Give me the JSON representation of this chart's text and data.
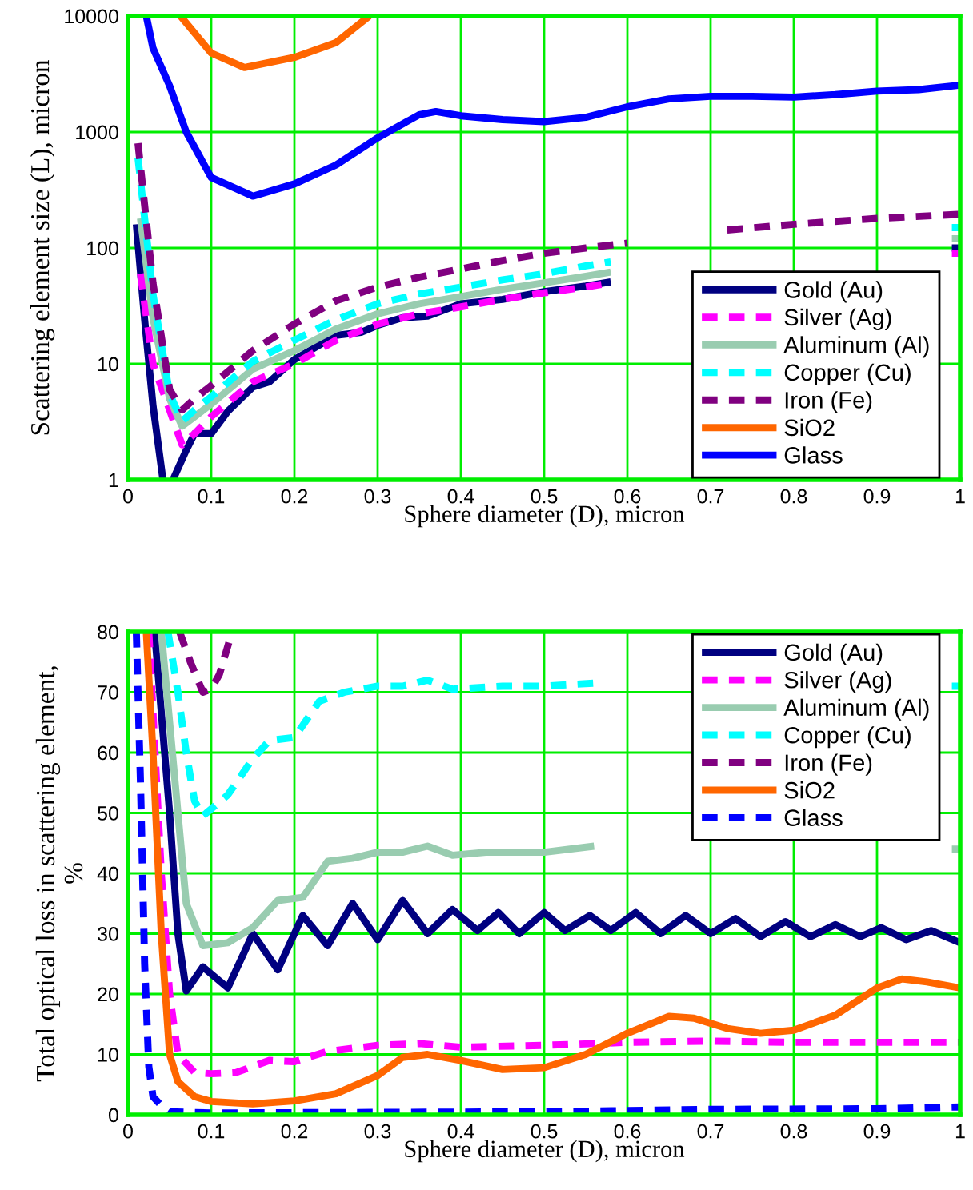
{
  "chart_data": [
    {
      "type": "line",
      "xlabel": "Sphere diameter (D), micron",
      "ylabel": "Scattering element size (L), micron",
      "log": "y",
      "xlim": [
        0,
        1
      ],
      "ylim": [
        1,
        10000
      ],
      "xticks": [
        0,
        0.1,
        0.2,
        0.3,
        0.4,
        0.5,
        0.6,
        0.7,
        0.8,
        0.9,
        1
      ],
      "yticks": [
        1,
        10,
        100,
        1000,
        10000
      ],
      "grid": true,
      "legend": "bottom right",
      "marker": "none",
      "series": [
        {
          "name": "Gold (Au)",
          "color": "#000080",
          "line_style": "solid",
          "x": [
            0.01,
            0.02,
            0.03,
            0.042,
            0.048,
            0.054,
            0.07,
            0.08,
            0.1,
            0.12,
            0.15,
            0.17,
            0.2,
            0.25,
            0.28,
            0.3,
            0.33,
            0.36,
            0.4,
            0.45,
            0.5,
            0.55,
            0.58,
            0.62,
            0.99,
            1.0
          ],
          "values": [
            160,
            24,
            4.4,
            1,
            null,
            1,
            1.8,
            2.5,
            2.5,
            3.9,
            6.3,
            7,
            10.9,
            17.6,
            18.7,
            21.5,
            25,
            25.8,
            33,
            36,
            42,
            47,
            51,
            null,
            100,
            100
          ]
        },
        {
          "name": "Silver (Ag)",
          "color": "#ff00ff",
          "line_style": "dashed",
          "x": [
            0.015,
            0.03,
            0.05,
            0.065,
            0.08,
            0.1,
            0.15,
            0.2,
            0.25,
            0.3,
            0.35,
            0.4,
            0.45,
            0.5,
            0.55,
            0.58,
            0.62,
            0.99,
            1.0
          ],
          "values": [
            60,
            10,
            4,
            2,
            2.5,
            3.5,
            7,
            10,
            16,
            22,
            27,
            31,
            36,
            41,
            46,
            50,
            null,
            90,
            90
          ]
        },
        {
          "name": "Aluminum (Al)",
          "color": "#99ccb0",
          "line_style": "solid",
          "x": [
            0.015,
            0.03,
            0.05,
            0.065,
            0.08,
            0.1,
            0.15,
            0.2,
            0.25,
            0.3,
            0.35,
            0.4,
            0.45,
            0.5,
            0.55,
            0.58,
            0.62,
            0.99,
            1.0
          ],
          "values": [
            180,
            25,
            5,
            2.9,
            3.5,
            4.5,
            9,
            13,
            20,
            27,
            33,
            38,
            44,
            50,
            57,
            62,
            null,
            120,
            120
          ]
        },
        {
          "name": "Copper (Cu)",
          "color": "#00ffff",
          "line_style": "dashed",
          "x": [
            0.012,
            0.03,
            0.05,
            0.065,
            0.08,
            0.1,
            0.15,
            0.2,
            0.25,
            0.3,
            0.35,
            0.4,
            0.45,
            0.5,
            0.55,
            0.58,
            0.62,
            0.99,
            1.0
          ],
          "values": [
            600,
            40,
            5.5,
            3.2,
            4,
            5.2,
            10.5,
            16,
            24,
            33,
            40,
            46,
            53,
            60,
            70,
            76,
            null,
            150,
            150
          ]
        },
        {
          "name": "Iron (Fe)",
          "color": "#800080",
          "line_style": "dashed",
          "x": [
            0.012,
            0.03,
            0.05,
            0.065,
            0.08,
            0.1,
            0.15,
            0.2,
            0.25,
            0.3,
            0.35,
            0.4,
            0.45,
            0.5,
            0.55,
            0.6,
            0.65,
            0.72,
            0.8,
            0.9,
            1.0
          ],
          "values": [
            800,
            50,
            6,
            4,
            5,
            6.5,
            13,
            22,
            35,
            46,
            56,
            66,
            78,
            90,
            100,
            110,
            null,
            143,
            160,
            180,
            195
          ]
        },
        {
          "name": "SiO2",
          "color": "#ff6600",
          "line_style": "solid",
          "x": [
            0.063,
            0.1,
            0.14,
            0.2,
            0.25,
            0.29
          ],
          "values": [
            10000,
            4800,
            3600,
            4400,
            5900,
            10000
          ]
        },
        {
          "name": "Glass",
          "color": "#0000ff",
          "line_style": "solid",
          "x": [
            0.022,
            0.03,
            0.05,
            0.07,
            0.1,
            0.15,
            0.2,
            0.25,
            0.3,
            0.35,
            0.37,
            0.4,
            0.45,
            0.5,
            0.55,
            0.6,
            0.65,
            0.7,
            0.75,
            0.8,
            0.85,
            0.9,
            0.95,
            1.0
          ],
          "values": [
            10000,
            5300,
            2500,
            1000,
            405,
            280,
            357,
            520,
            890,
            1410,
            1500,
            1380,
            1280,
            1230,
            1340,
            1650,
            1930,
            2030,
            2030,
            2000,
            2100,
            2250,
            2320,
            2540
          ]
        }
      ]
    },
    {
      "type": "line",
      "xlabel": "Sphere diameter (D), micron",
      "ylabel": "Total optical loss in scattering element,\n%",
      "xlim": [
        0,
        1
      ],
      "ylim": [
        0,
        80
      ],
      "xticks": [
        0,
        0.1,
        0.2,
        0.3,
        0.4,
        0.5,
        0.6,
        0.7,
        0.8,
        0.9,
        1
      ],
      "yticks": [
        0,
        10,
        20,
        30,
        40,
        50,
        60,
        70,
        80
      ],
      "grid": true,
      "legend": "top right",
      "marker": "none",
      "series": [
        {
          "name": "Gold (Au)",
          "color": "#000080",
          "line_style": "solid",
          "x": [
            0.032,
            0.05,
            0.06,
            0.07,
            0.09,
            0.12,
            0.15,
            0.18,
            0.21,
            0.24,
            0.27,
            0.3,
            0.33,
            0.36,
            0.39,
            0.42,
            0.445,
            0.47,
            0.5,
            0.525,
            0.555,
            0.58,
            0.61,
            0.64,
            0.67,
            0.7,
            0.73,
            0.76,
            0.79,
            0.82,
            0.85,
            0.88,
            0.905,
            0.935,
            0.965,
            1.0
          ],
          "values": [
            80,
            50,
            30,
            20.5,
            24.5,
            21,
            30,
            24,
            33,
            28,
            35,
            29,
            35.5,
            30,
            34,
            30.5,
            33.5,
            30,
            33.5,
            30.5,
            33,
            30.5,
            33.5,
            30,
            33,
            30,
            32.5,
            29.5,
            32,
            29.5,
            31.5,
            29.5,
            31,
            29,
            30.5,
            28.5
          ]
        },
        {
          "name": "Silver (Ag)",
          "color": "#ff00ff",
          "line_style": "dashed",
          "x": [
            0.025,
            0.04,
            0.05,
            0.06,
            0.08,
            0.1,
            0.13,
            0.17,
            0.2,
            0.24,
            0.3,
            0.35,
            0.4,
            0.5,
            0.6,
            0.7,
            0.8,
            0.9,
            1.0
          ],
          "values": [
            80,
            40,
            20,
            10,
            7,
            6.8,
            7,
            9,
            8.8,
            10.5,
            11.5,
            11.8,
            11.2,
            11.5,
            12,
            12.2,
            12,
            12,
            12
          ]
        },
        {
          "name": "Aluminum (Al)",
          "color": "#99ccb0",
          "line_style": "solid",
          "x": [
            0.04,
            0.06,
            0.07,
            0.09,
            0.12,
            0.15,
            0.18,
            0.21,
            0.24,
            0.27,
            0.3,
            0.33,
            0.36,
            0.39,
            0.43,
            0.5,
            0.56,
            0.6,
            0.99,
            1.0
          ],
          "values": [
            80,
            50,
            35,
            28,
            28.5,
            31,
            35.5,
            36,
            42,
            42.5,
            43.5,
            43.5,
            44.5,
            43,
            43.5,
            43.5,
            44.5,
            null,
            44,
            44
          ]
        },
        {
          "name": "Copper (Cu)",
          "color": "#00ffff",
          "line_style": "dashed",
          "x": [
            0.048,
            0.06,
            0.07,
            0.08,
            0.09,
            0.12,
            0.15,
            0.17,
            0.2,
            0.23,
            0.26,
            0.3,
            0.33,
            0.36,
            0.39,
            0.45,
            0.5,
            0.56,
            0.6,
            0.99,
            1.0
          ],
          "values": [
            80,
            70,
            60,
            52,
            49.5,
            53,
            59,
            62,
            62.5,
            68.5,
            70,
            71,
            71,
            72,
            70.5,
            71,
            71,
            71.5,
            null,
            71,
            71
          ]
        },
        {
          "name": "Iron (Fe)",
          "color": "#800080",
          "line_style": "dashed",
          "x": [
            0.062,
            0.075,
            0.09,
            0.1,
            0.11,
            0.125
          ],
          "values": [
            80,
            75,
            70,
            70.5,
            73,
            80
          ]
        },
        {
          "name": "SiO2",
          "color": "#ff6600",
          "line_style": "solid",
          "x": [
            0.022,
            0.03,
            0.04,
            0.05,
            0.06,
            0.08,
            0.1,
            0.15,
            0.2,
            0.25,
            0.3,
            0.33,
            0.36,
            0.4,
            0.45,
            0.5,
            0.55,
            0.6,
            0.65,
            0.68,
            0.72,
            0.76,
            0.8,
            0.85,
            0.9,
            0.93,
            0.96,
            1.0
          ],
          "values": [
            80,
            60,
            30,
            10,
            5.5,
            3,
            2.2,
            1.8,
            2.3,
            3.5,
            6.5,
            9.5,
            10,
            9,
            7.5,
            7.8,
            10,
            13.5,
            16.3,
            16,
            14.3,
            13.5,
            14,
            16.5,
            21,
            22.5,
            22,
            21
          ]
        },
        {
          "name": "Glass",
          "color": "#0000ff",
          "line_style": "dashed",
          "x": [
            0.01,
            0.015,
            0.02,
            0.025,
            0.03,
            0.04,
            0.05,
            0.1,
            0.3,
            0.5,
            0.7,
            0.9,
            1.0
          ],
          "values": [
            80,
            55,
            25,
            8,
            3,
            1.5,
            0.5,
            0.3,
            0.4,
            0.5,
            0.9,
            1,
            1.3
          ]
        }
      ]
    }
  ]
}
